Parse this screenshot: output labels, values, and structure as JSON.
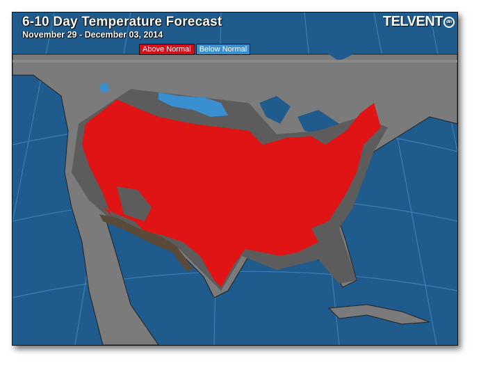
{
  "header": {
    "title": "6-10 Day Temperature Forecast",
    "subtitle": "November 29 - December 03, 2014"
  },
  "legend": [
    {
      "label": "Above Normal",
      "color": "#d0101a"
    },
    {
      "label": "Below Normal",
      "color": "#3a8fd0"
    }
  ],
  "logo": {
    "text": "TELVENT",
    "badge": "dtn"
  },
  "colors": {
    "ocean": "#1f5b8c",
    "land": "#7b7b7b",
    "near_normal": "#5c5c5c",
    "above_normal": "#e01414",
    "below_normal": "#3a8fd0",
    "much_below": "#5a4a3a"
  }
}
